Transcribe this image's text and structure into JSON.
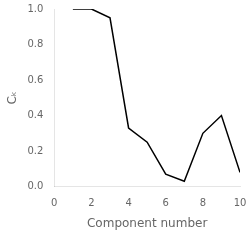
{
  "chart_data": {
    "type": "line",
    "x": [
      1,
      2,
      3,
      4,
      5,
      6,
      7,
      8,
      9,
      10
    ],
    "values": [
      1.0,
      1.0,
      0.95,
      0.33,
      0.25,
      0.07,
      0.03,
      0.3,
      0.4,
      0.08
    ],
    "color": "#000000",
    "x_label": "Component number",
    "y_label": "Cₖ",
    "xlim": [
      0,
      10
    ],
    "ylim": [
      0.0,
      1.0
    ],
    "xticks": [
      0,
      2,
      4,
      6,
      8,
      10
    ],
    "yticks": [
      {
        "value": 0.0,
        "label": "0.0"
      },
      0.2,
      0.4,
      0.6,
      0.8,
      {
        "value": 1.0,
        "label": "1.0"
      }
    ],
    "grid": false
  }
}
